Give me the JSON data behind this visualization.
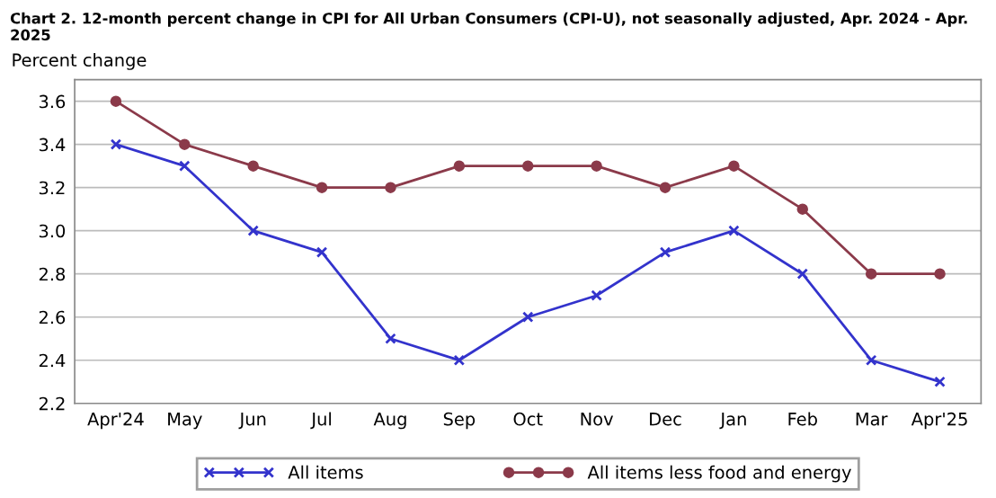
{
  "chart_data": {
    "type": "line",
    "title": "Chart 2. 12-month percent change in CPI for All Urban Consumers (CPI-U), not seasonally adjusted, Apr. 2024 - Apr. 2025",
    "ylabel": "Percent change",
    "categories": [
      "Apr'24",
      "May",
      "Jun",
      "Jul",
      "Aug",
      "Sep",
      "Oct",
      "Nov",
      "Dec",
      "Jan",
      "Feb",
      "Mar",
      "Apr'25"
    ],
    "series": [
      {
        "name": "All items",
        "color": "#3333cc",
        "marker": "cross",
        "values": [
          3.4,
          3.3,
          3.0,
          2.9,
          2.5,
          2.4,
          2.6,
          2.7,
          2.9,
          3.0,
          2.8,
          2.4,
          2.3
        ]
      },
      {
        "name": "All items less food and energy",
        "color": "#8b3a4a",
        "marker": "circle",
        "values": [
          3.6,
          3.4,
          3.3,
          3.2,
          3.2,
          3.3,
          3.3,
          3.3,
          3.2,
          3.3,
          3.1,
          2.8,
          2.8
        ]
      }
    ],
    "ylim": [
      2.2,
      3.7
    ],
    "yticks": [
      2.2,
      2.4,
      2.6,
      2.8,
      {
        "value": 3.0,
        "label": "3.0"
      },
      3.2,
      3.4,
      3.6
    ],
    "grid": "y",
    "legend": "bottom",
    "line_style": "solid"
  }
}
